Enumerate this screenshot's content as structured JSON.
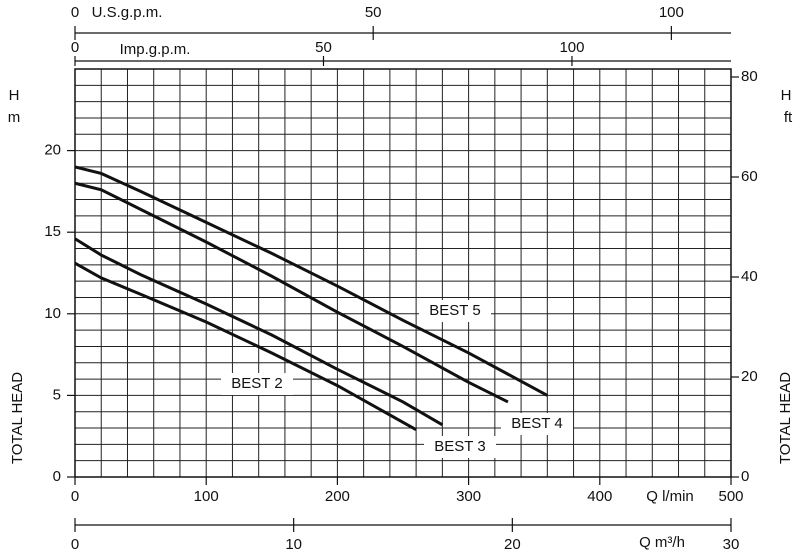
{
  "chart_data": {
    "type": "line",
    "xlabel": "Q l/min",
    "ylabel_top": "H",
    "ylabel_unit": "m",
    "ylabel": "TOTAL HEAD",
    "y2label_top": "H",
    "y2label_unit": "ft",
    "y2label": "TOTAL HEAD",
    "xlim": [
      0,
      500
    ],
    "xticks": [
      0,
      100,
      200,
      300,
      400,
      500
    ],
    "xgrid": [
      0,
      20,
      40,
      60,
      80,
      100,
      120,
      140,
      160,
      180,
      200,
      220,
      240,
      260,
      280,
      300,
      320,
      340,
      360,
      380,
      400,
      420,
      440,
      460,
      480,
      500
    ],
    "ylim": [
      0,
      25
    ],
    "yticks": [
      0,
      5,
      10,
      15,
      20
    ],
    "ygrid": [
      0,
      1,
      2,
      3,
      4,
      5,
      6,
      7,
      8,
      9,
      10,
      11,
      12,
      13,
      14,
      15,
      16,
      17,
      18,
      19,
      20,
      21,
      22,
      23,
      24,
      25
    ],
    "y2lim": [
      0,
      81.6
    ],
    "y2ticks": [
      0,
      20,
      40,
      60,
      80
    ],
    "x_m3h": {
      "label": "Q m³/h",
      "lim": [
        0,
        30
      ],
      "ticks": [
        0,
        10,
        20,
        30
      ]
    },
    "x_usgpm": {
      "label": "U.S.g.p.m.",
      "lim": [
        0,
        110
      ],
      "ticks": [
        0,
        50,
        100
      ]
    },
    "x_impgpm": {
      "label": "Imp.g.p.m.",
      "lim": [
        0,
        132
      ],
      "ticks": [
        0,
        50,
        100
      ]
    },
    "color": "#111111",
    "series": [
      {
        "name": "BEST 2",
        "x": [
          0,
          20,
          50,
          100,
          150,
          200,
          260
        ],
        "values": [
          13.1,
          12.2,
          11.2,
          9.5,
          7.6,
          5.6,
          2.9
        ]
      },
      {
        "name": "BEST 3",
        "x": [
          0,
          20,
          50,
          100,
          150,
          200,
          250,
          280
        ],
        "values": [
          14.6,
          13.6,
          12.4,
          10.6,
          8.7,
          6.6,
          4.6,
          3.2
        ]
      },
      {
        "name": "BEST 4",
        "x": [
          0,
          20,
          50,
          100,
          150,
          200,
          250,
          300,
          330
        ],
        "values": [
          18.0,
          17.6,
          16.4,
          14.4,
          12.3,
          10.1,
          8.0,
          5.8,
          4.6
        ]
      },
      {
        "name": "BEST 5",
        "x": [
          0,
          20,
          50,
          100,
          150,
          200,
          250,
          300,
          360
        ],
        "values": [
          19.0,
          18.6,
          17.5,
          15.6,
          13.7,
          11.7,
          9.6,
          7.6,
          5.0
        ]
      }
    ]
  }
}
